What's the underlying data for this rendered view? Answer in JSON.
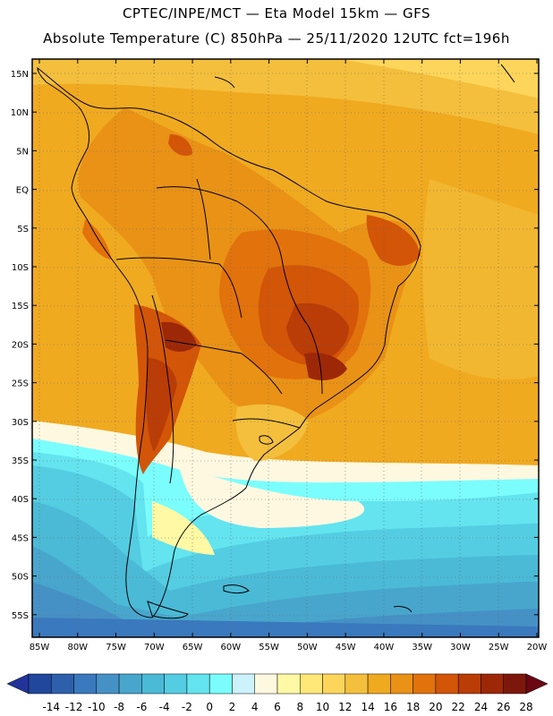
{
  "header": {
    "line1": "CPTEC/INPE/MCT —  Eta Model 15km — GFS",
    "line2": "Absolute Temperature (C) 850hPa — 25/11/2020 12UTC fct=196h"
  },
  "map": {
    "latitude_labels": [
      "15N",
      "10N",
      "5N",
      "EQ",
      "5S",
      "10S",
      "15S",
      "20S",
      "25S",
      "30S",
      "35S",
      "40S",
      "45S",
      "50S",
      "55S"
    ],
    "longitude_labels": [
      "85W",
      "80W",
      "75W",
      "70W",
      "65W",
      "60W",
      "55W",
      "50W",
      "45W",
      "40W",
      "35W",
      "30W",
      "25W",
      "20W"
    ]
  },
  "colorbar": {
    "labels": [
      "-14",
      "-12",
      "-10",
      "-8",
      "-6",
      "-4",
      "-2",
      "0",
      "2",
      "4",
      "6",
      "8",
      "10",
      "12",
      "14",
      "16",
      "18",
      "20",
      "22",
      "24",
      "26",
      "28"
    ],
    "colors": [
      "#20479c",
      "#2e5fad",
      "#3a79bd",
      "#4591c6",
      "#48a6cd",
      "#4bbad6",
      "#54cde2",
      "#63e4ef",
      "#7bfdfd",
      "#ccf3fb",
      "#fff8e0",
      "#fff8a4",
      "#ffe878",
      "#fcd55a",
      "#f4bf3c",
      "#f0aa20",
      "#e99216",
      "#e2720c",
      "#d25508",
      "#ba3c06",
      "#9c2808",
      "#7c180b"
    ],
    "under_color": "#22339a",
    "over_color": "#6a0712"
  }
}
